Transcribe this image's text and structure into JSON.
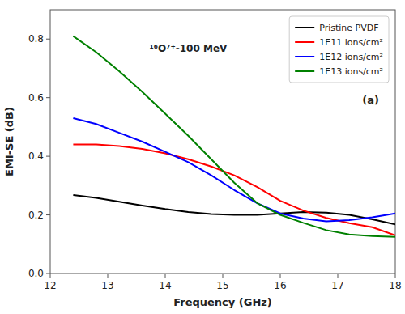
{
  "chart_data": {
    "type": "line",
    "xlabel": "Frequency (GHz)",
    "ylabel": "EMI-SE (dB)",
    "annotations": [
      {
        "text": "¹⁶O⁷⁺-100 MeV"
      },
      {
        "text": "(a)"
      }
    ],
    "x": [
      12.4,
      12.8,
      13.2,
      13.6,
      14.0,
      14.4,
      14.8,
      15.2,
      15.6,
      16.0,
      16.4,
      16.8,
      17.2,
      17.6,
      18.0
    ],
    "series": [
      {
        "name": "Pristine PVDF",
        "color": "#000000",
        "values": [
          0.268,
          0.258,
          0.245,
          0.232,
          0.22,
          0.21,
          0.203,
          0.2,
          0.2,
          0.205,
          0.21,
          0.208,
          0.2,
          0.185,
          0.168
        ]
      },
      {
        "name": "1E11 ions/cm²",
        "color": "#ff0000",
        "values": [
          0.44,
          0.44,
          0.435,
          0.425,
          0.41,
          0.39,
          0.365,
          0.335,
          0.295,
          0.248,
          0.215,
          0.19,
          0.172,
          0.158,
          0.13
        ]
      },
      {
        "name": "1E12 ions/cm²",
        "color": "#0000ff",
        "values": [
          0.53,
          0.51,
          0.48,
          0.45,
          0.415,
          0.38,
          0.335,
          0.285,
          0.24,
          0.205,
          0.188,
          0.178,
          0.182,
          0.192,
          0.205
        ]
      },
      {
        "name": "1E13 ions/cm²",
        "color": "#008000",
        "values": [
          0.81,
          0.755,
          0.69,
          0.62,
          0.545,
          0.47,
          0.39,
          0.31,
          0.24,
          0.2,
          0.173,
          0.148,
          0.133,
          0.128,
          0.125
        ]
      }
    ],
    "xlim": [
      12,
      18
    ],
    "ylim": [
      0.0,
      0.9
    ],
    "xticks": [
      12,
      13,
      14,
      15,
      16,
      17,
      18
    ],
    "yticks": [
      {
        "value": 0.0,
        "label": "0.0"
      },
      0.2,
      0.4,
      0.6,
      0.8
    ],
    "grid": false,
    "legend": "upper right"
  }
}
